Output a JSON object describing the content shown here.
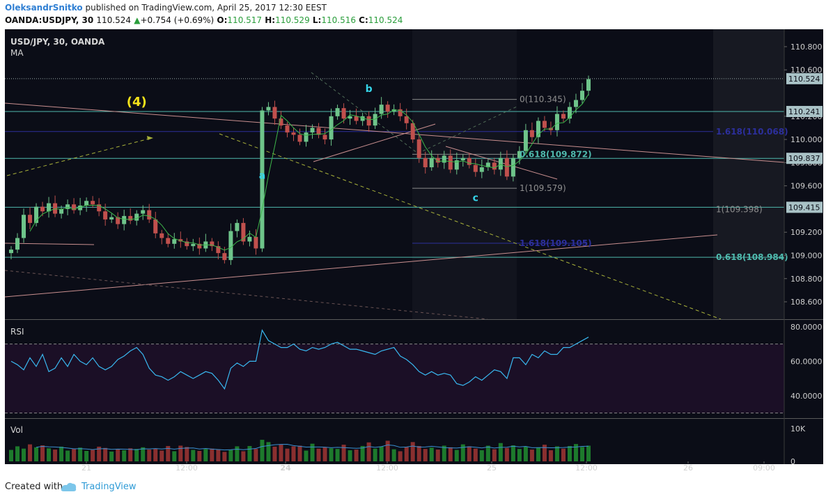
{
  "header": {
    "author": "OleksandrSnitko",
    "published": " published on TradingView.com, April 25, 2017 12:30 EEST",
    "symbol": "OANDA:USDJPY, 30",
    "last": "110.524",
    "change": "+0.754 (+0.69%)",
    "o_label": "O:",
    "o_value": "110.517",
    "h_label": "H:",
    "h_value": "110.529",
    "l_label": "L:",
    "l_value": "110.516",
    "c_label": "C:",
    "c_value": "110.524"
  },
  "panes": {
    "main_title": "USD/JPY, 30, OANDA",
    "main_indicator": "MA",
    "rsi_title": "RSI",
    "vol_title": "Vol"
  },
  "colors": {
    "background": "#0b0d17",
    "up": "#6ec48a",
    "down": "#c0504d",
    "ma": "#3db54a",
    "rsi_line": "#39b8f0",
    "rsi_band": "#1b0f26",
    "fib_teal": "#4fb9ad",
    "fib_blue": "#2c2f9c",
    "trend": "#c98f8f",
    "dashed_yellow": "#a8b13a",
    "wave_label": "#35d4e8",
    "wave_yellow": "#f3e21a",
    "price_badge": "#a9c2c6"
  },
  "chart_data": [
    {
      "type": "candlestick",
      "title": "USD/JPY, 30, OANDA",
      "indicator": "MA",
      "x_ticks": [
        "21",
        "12:00",
        "24",
        "12:00",
        "25",
        "12:00",
        "26",
        "09:00"
      ],
      "y_ticks": [
        "110.800",
        "110.600",
        "110.200",
        "110.000",
        "109.800",
        "109.600",
        "109.200",
        "109.000",
        "108.800",
        "108.600"
      ],
      "ylim": [
        108.45,
        110.95
      ],
      "price_badges": [
        {
          "label": "110.524",
          "value": 110.524
        },
        {
          "label": "110.241",
          "value": 110.241
        },
        {
          "label": "109.837",
          "value": 109.837
        },
        {
          "label": "109.415",
          "value": 109.415
        }
      ],
      "closes": [
        109.05,
        109.15,
        109.35,
        109.28,
        109.42,
        109.38,
        109.45,
        109.36,
        109.4,
        109.44,
        109.39,
        109.43,
        109.47,
        109.44,
        109.38,
        109.31,
        109.33,
        109.27,
        109.34,
        109.3,
        109.36,
        109.39,
        109.31,
        109.19,
        109.15,
        109.1,
        109.14,
        109.12,
        109.08,
        109.1,
        109.06,
        109.12,
        109.08,
        109.02,
        108.96,
        109.21,
        109.28,
        109.12,
        109.16,
        109.06,
        110.25,
        110.28,
        110.18,
        110.12,
        110.06,
        110.04,
        109.98,
        110.06,
        110.1,
        110.04,
        110.0,
        110.2,
        110.27,
        110.18,
        110.2,
        110.16,
        110.2,
        110.12,
        110.22,
        110.3,
        110.24,
        110.26,
        110.2,
        110.14,
        110.0,
        109.84,
        109.76,
        109.84,
        109.8,
        109.86,
        109.74,
        109.82,
        109.84,
        109.78,
        109.72,
        109.76,
        109.8,
        109.74,
        109.84,
        109.68,
        109.84,
        109.9,
        110.08,
        110.02,
        110.16,
        110.1,
        110.08,
        110.22,
        110.18,
        110.28,
        110.34,
        110.42,
        110.52
      ],
      "annotations": [
        {
          "text": "(4)",
          "kind": "wave",
          "index": 20,
          "price": 110.32
        },
        {
          "text": "a",
          "kind": "wave",
          "index": 40,
          "price": 109.69
        },
        {
          "text": "b",
          "kind": "wave",
          "index": 57,
          "price": 110.44
        },
        {
          "text": "c",
          "kind": "wave",
          "index": 74,
          "price": 109.5
        }
      ],
      "fib_levels": [
        {
          "text": "0(110.345)",
          "price": 110.345
        },
        {
          "text": "1.618(110.068)",
          "price": 110.068
        },
        {
          "text": "0.618(109.872)",
          "price": 109.872
        },
        {
          "text": "1(109.579)",
          "price": 109.579
        },
        {
          "text": "1(109.398)",
          "price": 109.398
        },
        {
          "text": "1.618(109.105)",
          "price": 109.105
        },
        {
          "text": "0.618(108.984)",
          "price": 108.984
        }
      ]
    },
    {
      "type": "line",
      "title": "RSI",
      "y_ticks": [
        "80.0000",
        "60.0000",
        "40.0000"
      ],
      "ylim": [
        27,
        84
      ],
      "overbought": 70,
      "oversold": 30,
      "values": [
        60,
        58,
        55,
        62,
        57,
        64,
        54,
        56,
        62,
        57,
        64,
        60,
        58,
        62,
        57,
        55,
        57,
        61,
        63,
        66,
        68,
        64,
        56,
        52,
        51,
        49,
        51,
        54,
        52,
        50,
        52,
        54,
        53,
        49,
        44,
        56,
        59,
        57,
        60,
        60,
        78,
        72,
        70,
        68,
        68,
        70,
        67,
        66,
        68,
        67,
        68,
        70,
        71,
        69,
        67,
        67,
        66,
        65,
        64,
        66,
        67,
        68,
        63,
        61,
        58,
        54,
        52,
        54,
        52,
        53,
        52,
        47,
        46,
        48,
        51,
        49,
        52,
        55,
        54,
        50,
        62,
        62,
        58,
        64,
        62,
        66,
        64,
        64,
        68,
        68,
        70,
        72,
        74
      ]
    },
    {
      "type": "bar",
      "title": "Vol",
      "y_ticks": [
        "10K",
        "0"
      ],
      "ylim": [
        0,
        13000
      ],
      "values": [
        3500,
        4600,
        3900,
        5200,
        4300,
        4900,
        4000,
        3600,
        4500,
        3300,
        3800,
        4200,
        3200,
        3500,
        4500,
        4100,
        3000,
        3700,
        3400,
        4000,
        3800,
        4300,
        3600,
        3900,
        3300,
        4700,
        3100,
        4800,
        4400,
        3500,
        3200,
        3800,
        3900,
        3700,
        2900,
        3500,
        4600,
        3100,
        4700,
        3800,
        6600,
        5900,
        4500,
        5200,
        3900,
        4600,
        4800,
        3300,
        5400,
        3900,
        4300,
        4000,
        3800,
        5100,
        3400,
        3600,
        4700,
        5800,
        3900,
        4500,
        6300,
        3700,
        3100,
        4400,
        5900,
        4700,
        3800,
        4200,
        3600,
        4800,
        4300,
        3500,
        5200,
        4600,
        3900,
        3400,
        4800,
        3700,
        5600,
        4100,
        4900,
        3800,
        4500,
        3600,
        4200,
        5100,
        3400,
        4600,
        3900,
        4700,
        5300,
        4400,
        4800
      ]
    }
  ]
}
